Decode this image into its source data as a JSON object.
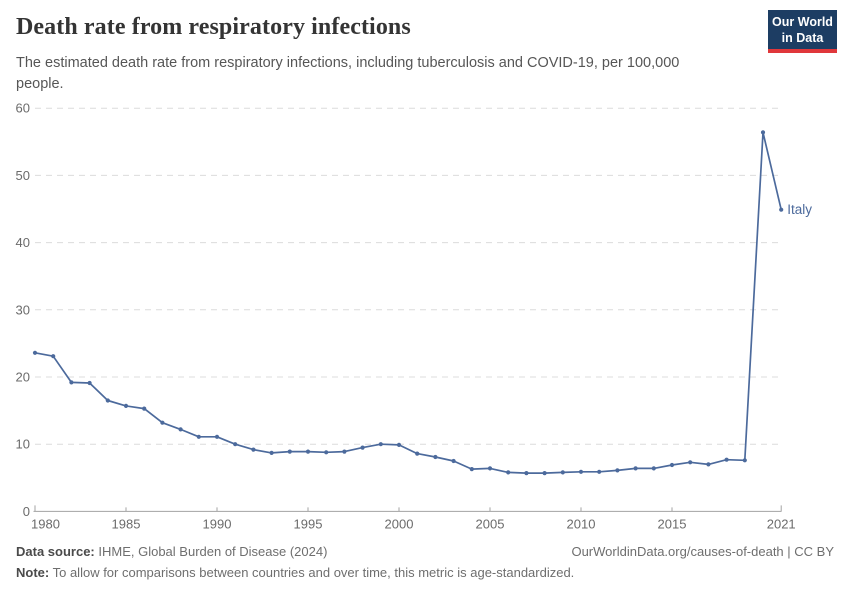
{
  "header": {
    "title": "Death rate from respiratory infections",
    "subtitle": "The estimated death rate from respiratory infections, including tuberculosis and COVID-19, per 100,000 people.",
    "logo_line1": "Our World",
    "logo_line2": "in Data"
  },
  "chart_data": {
    "type": "line",
    "title": "Death rate from respiratory infections",
    "xlabel": "",
    "ylabel": "",
    "xlim": [
      1980,
      2021
    ],
    "ylim": [
      0,
      60
    ],
    "x_ticks": [
      1980,
      1985,
      1990,
      1995,
      2000,
      2005,
      2010,
      2015,
      2021
    ],
    "y_ticks": [
      0,
      10,
      20,
      30,
      40,
      50,
      60
    ],
    "grid": "horizontal-dashed",
    "legend_position": "end-of-line-label",
    "x": [
      1980,
      1981,
      1982,
      1983,
      1984,
      1985,
      1986,
      1987,
      1988,
      1989,
      1990,
      1991,
      1992,
      1993,
      1994,
      1995,
      1996,
      1997,
      1998,
      1999,
      2000,
      2001,
      2002,
      2003,
      2004,
      2005,
      2006,
      2007,
      2008,
      2009,
      2010,
      2011,
      2012,
      2013,
      2014,
      2015,
      2016,
      2017,
      2018,
      2019,
      2020,
      2021
    ],
    "series": [
      {
        "name": "Italy",
        "color": "#4c6a9c",
        "values": [
          23.6,
          23.1,
          19.2,
          19.1,
          16.5,
          15.7,
          15.3,
          13.2,
          12.2,
          11.1,
          11.1,
          10.0,
          9.2,
          8.7,
          8.9,
          8.9,
          8.8,
          8.9,
          9.5,
          10.0,
          9.9,
          8.6,
          8.1,
          7.5,
          6.3,
          6.4,
          5.8,
          5.7,
          5.7,
          5.8,
          5.9,
          5.9,
          6.1,
          6.4,
          6.4,
          6.9,
          7.3,
          7.0,
          7.7,
          7.6,
          56.4,
          44.9
        ]
      }
    ]
  },
  "footer": {
    "data_source_label": "Data source:",
    "data_source_text": "IHME, Global Burden of Disease (2024)",
    "url_text": "OurWorldinData.org/causes-of-death | CC BY",
    "note_label": "Note:",
    "note_text": "To allow for comparisons between countries and over time, this metric is age-standardized."
  },
  "colors": {
    "line": "#4c6a9c",
    "grid": "#dcdcdc",
    "axis": "#a3a3a3",
    "tick_text": "#6b6b6b",
    "logo_bg": "#1d3d63",
    "logo_stripe": "#e0373b"
  }
}
